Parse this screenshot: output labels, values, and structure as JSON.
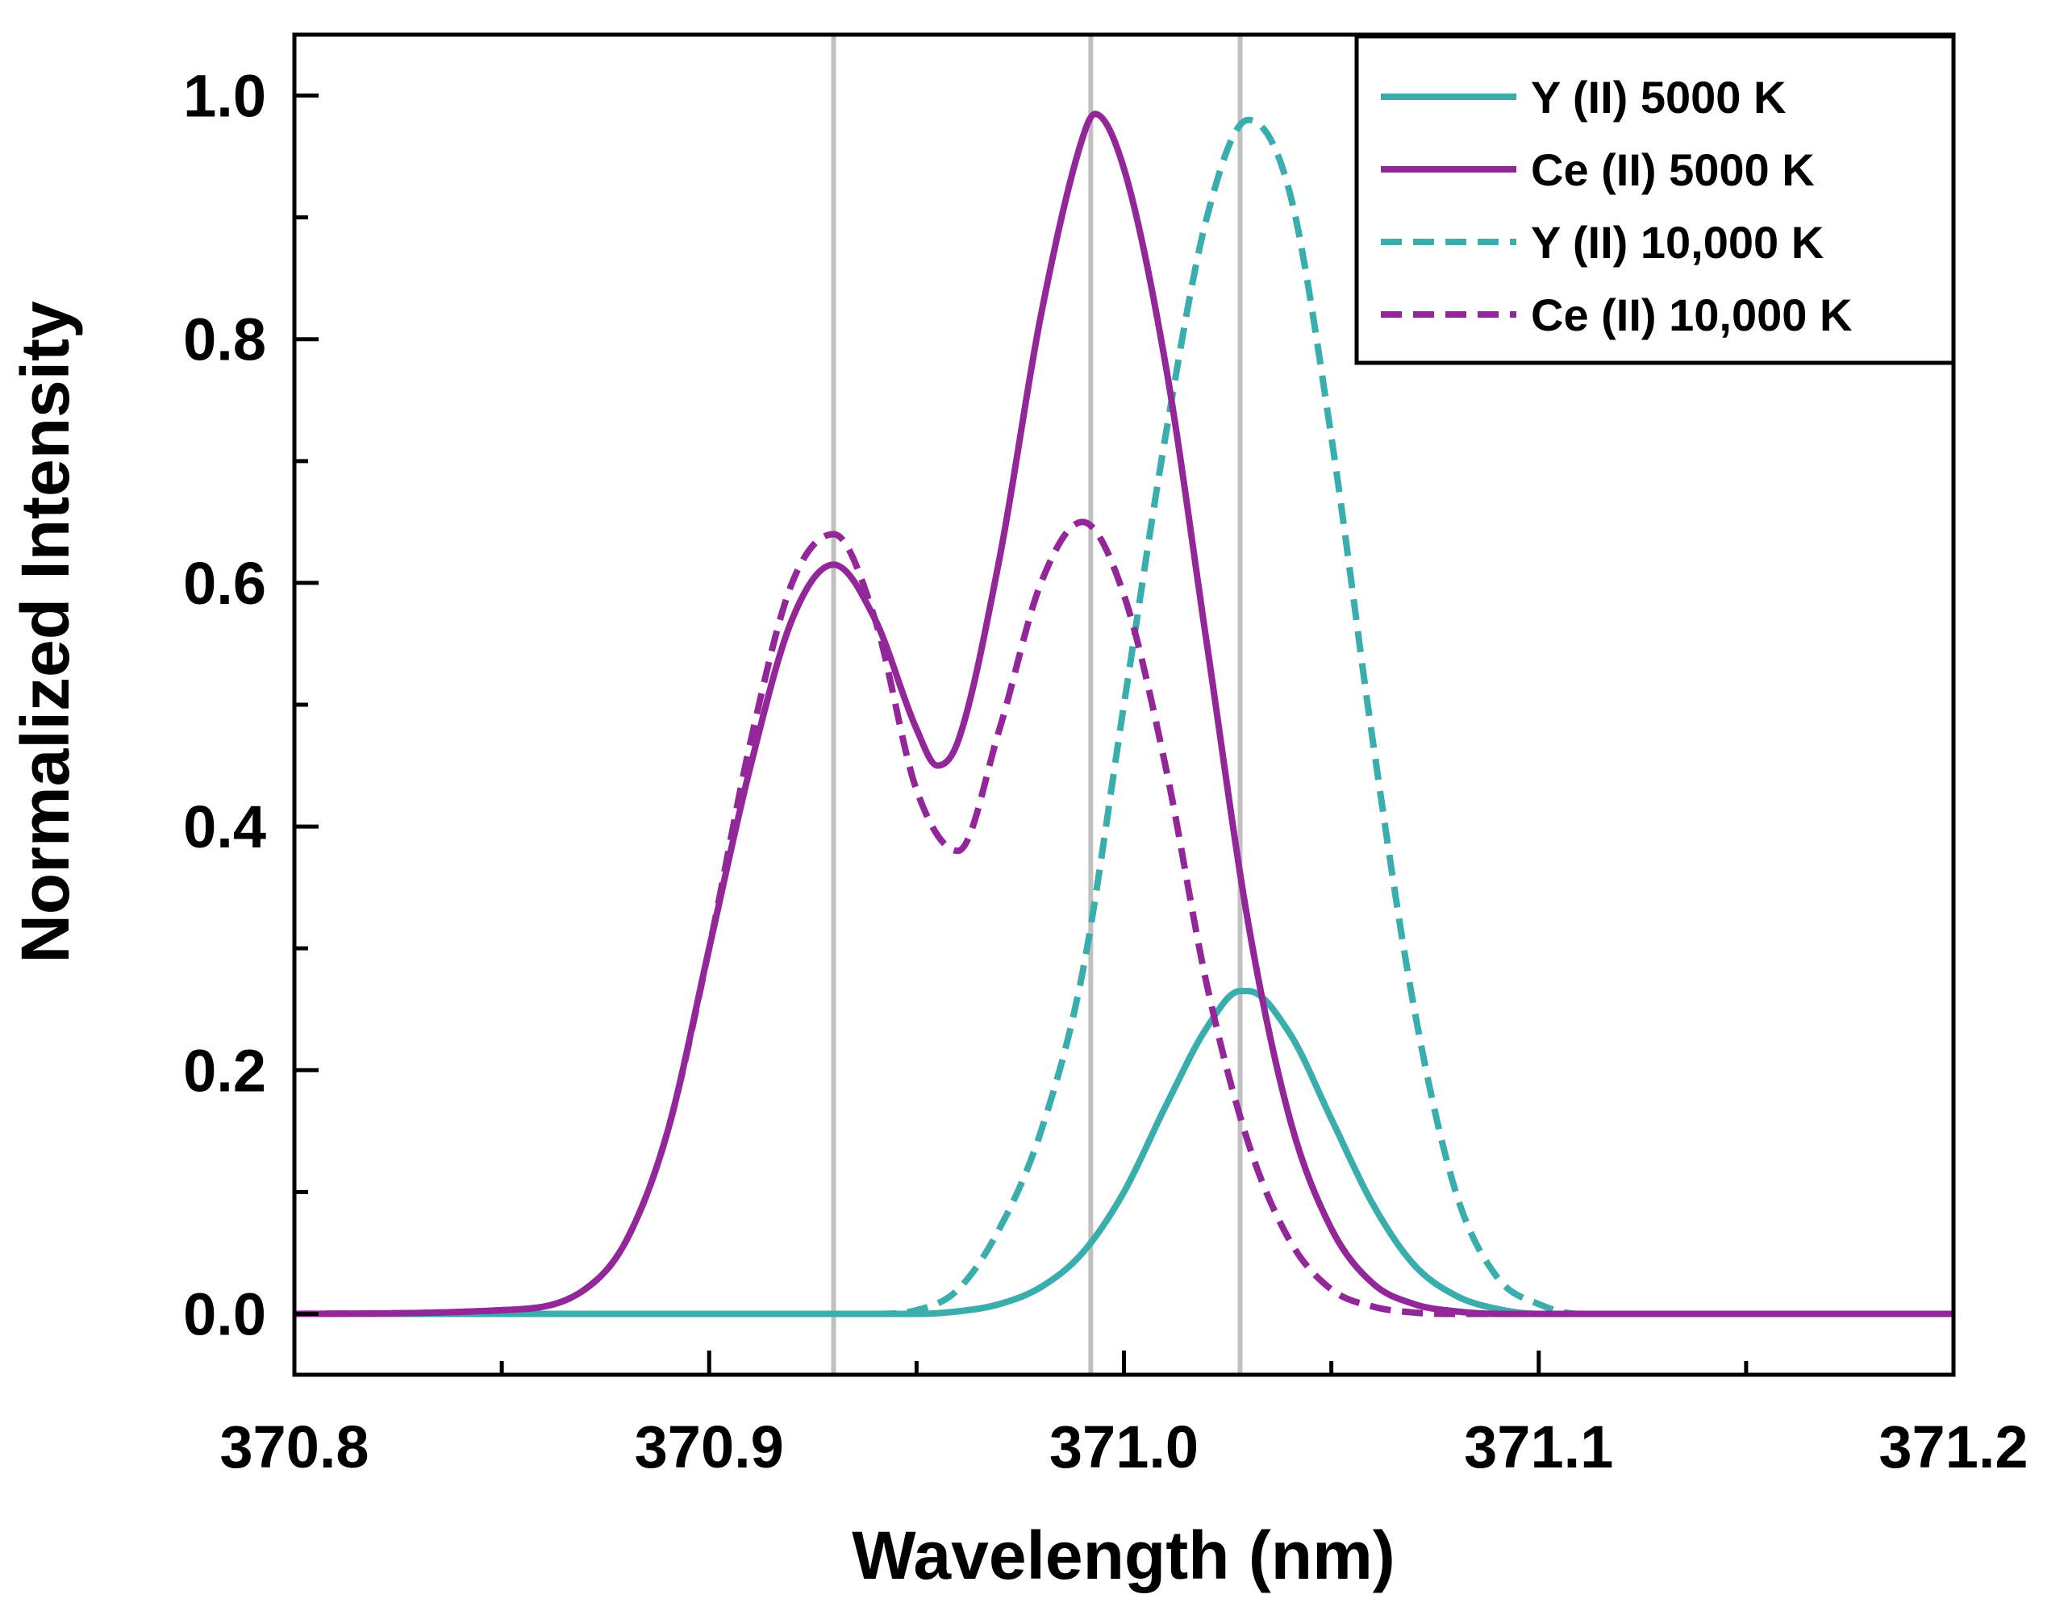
{
  "chart_data": {
    "type": "line",
    "title": "",
    "xlabel": "Wavelength (nm)",
    "ylabel": "Normalized Intensity",
    "xlim": [
      370.8,
      371.2
    ],
    "ylim": [
      -0.05,
      1.05
    ],
    "xticks": [
      {
        "value": 370.8,
        "label": "370.8"
      },
      {
        "value": 370.9,
        "label": "370.9"
      },
      {
        "value": 371.0,
        "label": "371.0"
      },
      {
        "value": 371.1,
        "label": "371.1"
      },
      {
        "value": 371.2,
        "label": "371.2"
      }
    ],
    "yticks": [
      {
        "value": 0.0,
        "label": "0.0"
      },
      {
        "value": 0.2,
        "label": "0.2"
      },
      {
        "value": 0.4,
        "label": "0.4"
      },
      {
        "value": 0.6,
        "label": "0.6"
      },
      {
        "value": 0.8,
        "label": "0.8"
      },
      {
        "value": 1.0,
        "label": "1.0"
      }
    ],
    "x_minor_step": 0.05,
    "y_minor_step": 0.1,
    "legend_position": "top-right",
    "reference_lines": [
      370.93,
      370.992,
      371.028
    ],
    "colors": {
      "teal": "#3aadad",
      "purple": "#93279a",
      "reference": "#c0c0c0"
    },
    "series": [
      {
        "name": "Y (II) 5000 K",
        "style": "solid",
        "color": "#3aadad",
        "x": [
          370.8,
          370.95,
          370.96,
          370.97,
          370.98,
          370.99,
          371.0,
          371.01,
          371.02,
          371.028,
          371.03,
          371.04,
          371.05,
          371.06,
          371.07,
          371.08,
          371.09,
          371.1,
          371.2
        ],
        "y": [
          0.0,
          0.0,
          0.002,
          0.008,
          0.022,
          0.05,
          0.1,
          0.17,
          0.235,
          0.265,
          0.265,
          0.23,
          0.16,
          0.09,
          0.04,
          0.015,
          0.004,
          0.0,
          0.0
        ]
      },
      {
        "name": "Ce (II) 5000 K",
        "style": "solid",
        "color": "#93279a",
        "x": [
          370.8,
          370.85,
          370.87,
          370.88,
          370.89,
          370.9,
          370.91,
          370.92,
          370.93,
          370.94,
          370.95,
          370.955,
          370.96,
          370.97,
          370.98,
          370.99,
          370.993,
          371.0,
          371.01,
          371.02,
          371.03,
          371.04,
          371.05,
          371.06,
          371.07,
          371.08,
          371.09,
          371.2
        ],
        "y": [
          0.0,
          0.003,
          0.02,
          0.06,
          0.15,
          0.3,
          0.45,
          0.57,
          0.615,
          0.57,
          0.48,
          0.45,
          0.47,
          0.62,
          0.82,
          0.965,
          0.985,
          0.94,
          0.78,
          0.55,
          0.32,
          0.16,
          0.07,
          0.025,
          0.008,
          0.002,
          0.0,
          0.0
        ]
      },
      {
        "name": "Y (II) 10,000 K",
        "style": "dashed",
        "color": "#3aadad",
        "x": [
          370.8,
          370.94,
          370.95,
          370.96,
          370.97,
          370.98,
          370.99,
          371.0,
          371.01,
          371.02,
          371.03,
          371.04,
          371.05,
          371.06,
          371.07,
          371.08,
          371.09,
          371.1,
          371.11,
          371.2
        ],
        "y": [
          0.0,
          0.0,
          0.003,
          0.02,
          0.07,
          0.15,
          0.28,
          0.5,
          0.72,
          0.9,
          0.98,
          0.92,
          0.72,
          0.47,
          0.25,
          0.1,
          0.03,
          0.008,
          0.0,
          0.0
        ]
      },
      {
        "name": "Ce (II) 10,000 K",
        "style": "dashed",
        "color": "#93279a",
        "x": [
          370.8,
          370.85,
          370.87,
          370.88,
          370.89,
          370.9,
          370.91,
          370.92,
          370.93,
          370.94,
          370.95,
          370.96,
          370.97,
          370.98,
          370.99,
          371.0,
          371.01,
          371.02,
          371.03,
          371.04,
          371.05,
          371.06,
          371.07,
          371.08,
          371.09,
          371.2
        ],
        "y": [
          0.0,
          0.003,
          0.02,
          0.06,
          0.15,
          0.3,
          0.47,
          0.6,
          0.64,
          0.57,
          0.43,
          0.38,
          0.48,
          0.6,
          0.65,
          0.59,
          0.45,
          0.27,
          0.14,
          0.06,
          0.02,
          0.006,
          0.001,
          0.0,
          0.0,
          0.0
        ]
      }
    ]
  }
}
